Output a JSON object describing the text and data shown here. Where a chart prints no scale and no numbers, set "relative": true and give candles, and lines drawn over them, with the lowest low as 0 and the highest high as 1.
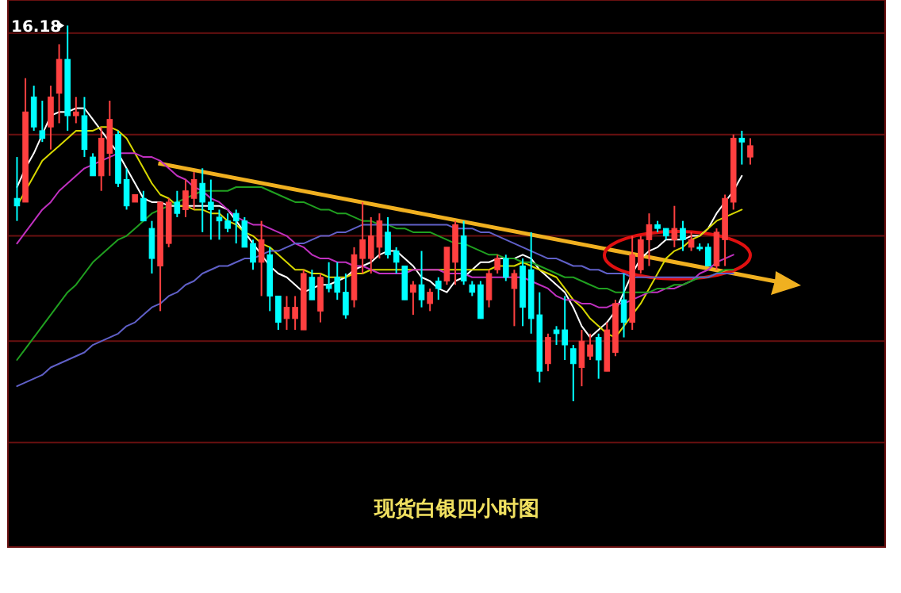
{
  "chart_data": {
    "type": "candlestick",
    "title": "现货白银四小时图",
    "relative": true,
    "ref_lines": [
      {
        "axis": "y",
        "value": 0.98,
        "color": "#6a1010"
      },
      {
        "axis": "y",
        "value": 0.71,
        "color": "#6a1010"
      },
      {
        "axis": "y",
        "value": 0.44,
        "color": "#6a1010"
      },
      {
        "axis": "y",
        "value": 0.16,
        "color": "#6a1010"
      },
      {
        "axis": "y",
        "value": -0.11,
        "color": "#6a1010"
      }
    ],
    "annotations": [
      "16.18"
    ],
    "categories": [
      null,
      null,
      null,
      null,
      null,
      null,
      null,
      null,
      null,
      null,
      null,
      null,
      null,
      null,
      null,
      null,
      null,
      null,
      null,
      null,
      null,
      null,
      null,
      null,
      null,
      null,
      null,
      null,
      null,
      null,
      null,
      null,
      null,
      null,
      null,
      null,
      null,
      null,
      null,
      null,
      null,
      null,
      null,
      null,
      null,
      null,
      null,
      null,
      null,
      null,
      null,
      null,
      null,
      null,
      null,
      null,
      null,
      null,
      null,
      null,
      null,
      null,
      null,
      null,
      null,
      null,
      null,
      null,
      null,
      null,
      null,
      null,
      null,
      null,
      null,
      null,
      null,
      null,
      null,
      null,
      null,
      null,
      null,
      null,
      null,
      null,
      null,
      null
    ],
    "ohlc": [
      [
        0.54,
        0.65,
        0.48,
        0.52
      ],
      [
        0.53,
        0.86,
        0.53,
        0.77
      ],
      [
        0.81,
        0.84,
        0.72,
        0.73
      ],
      [
        0.72,
        0.8,
        0.69,
        0.7
      ],
      [
        0.73,
        0.84,
        0.67,
        0.81
      ],
      [
        0.82,
        0.95,
        0.74,
        0.91
      ],
      [
        0.91,
        1,
        0.72,
        0.76
      ],
      [
        0.76,
        0.81,
        0.74,
        0.77
      ],
      [
        0.76,
        0.81,
        0.65,
        0.67
      ],
      [
        0.65,
        0.66,
        0.6,
        0.6
      ],
      [
        0.6,
        0.73,
        0.56,
        0.7
      ],
      [
        0.66,
        0.8,
        0.6,
        0.75
      ],
      [
        0.71,
        0.72,
        0.57,
        0.58
      ],
      [
        0.59,
        0.62,
        0.51,
        0.52
      ],
      [
        0.53,
        0.55,
        0.53,
        0.55
      ],
      [
        0.54,
        0.56,
        0.48,
        0.48
      ],
      [
        0.46,
        0.48,
        0.34,
        0.38
      ],
      [
        0.36,
        0.53,
        0.24,
        0.53
      ],
      [
        0.42,
        0.54,
        0.41,
        0.53
      ],
      [
        0.53,
        0.56,
        0.49,
        0.5
      ],
      [
        0.51,
        0.59,
        0.49,
        0.56
      ],
      [
        0.54,
        0.61,
        0.51,
        0.59
      ],
      [
        0.58,
        0.62,
        0.45,
        0.53
      ],
      [
        0.53,
        0.59,
        0.43,
        0.51
      ],
      [
        0.49,
        0.51,
        0.43,
        0.48
      ],
      [
        0.48,
        0.5,
        0.45,
        0.46
      ],
      [
        0.5,
        0.51,
        0.42,
        0.48
      ],
      [
        0.48,
        0.49,
        0.41,
        0.41
      ],
      [
        0.42,
        0.43,
        0.35,
        0.37
      ],
      [
        0.37,
        0.48,
        0.28,
        0.43
      ],
      [
        0.39,
        0.41,
        0.24,
        0.28
      ],
      [
        0.28,
        0.28,
        0.19,
        0.21
      ],
      [
        0.22,
        0.28,
        0.19,
        0.25
      ],
      [
        0.22,
        0.28,
        0.19,
        0.25
      ],
      [
        0.19,
        0.35,
        0.19,
        0.34
      ],
      [
        0.33,
        0.35,
        0.27,
        0.27
      ],
      [
        0.24,
        0.34,
        0.21,
        0.33
      ],
      [
        0.31,
        0.37,
        0.29,
        0.3
      ],
      [
        0.33,
        0.37,
        0.27,
        0.29
      ],
      [
        0.29,
        0.34,
        0.22,
        0.23
      ],
      [
        0.27,
        0.41,
        0.25,
        0.39
      ],
      [
        0.38,
        0.53,
        0.34,
        0.43
      ],
      [
        0.38,
        0.49,
        0.34,
        0.44
      ],
      [
        0.41,
        0.5,
        0.38,
        0.48
      ],
      [
        0.45,
        0.49,
        0.38,
        0.39
      ],
      [
        0.4,
        0.41,
        0.34,
        0.37
      ],
      [
        0.36,
        0.36,
        0.27,
        0.27
      ],
      [
        0.29,
        0.32,
        0.23,
        0.31
      ],
      [
        0.31,
        0.4,
        0.25,
        0.27
      ],
      [
        0.26,
        0.3,
        0.24,
        0.29
      ],
      [
        0.32,
        0.33,
        0.27,
        0.3
      ],
      [
        0.32,
        0.41,
        0.31,
        0.41
      ],
      [
        0.37,
        0.48,
        0.31,
        0.47
      ],
      [
        0.44,
        0.48,
        0.31,
        0.32
      ],
      [
        0.31,
        0.32,
        0.28,
        0.29
      ],
      [
        0.31,
        0.32,
        0.22,
        0.22
      ],
      [
        0.27,
        0.35,
        0.25,
        0.34
      ],
      [
        0.35,
        0.39,
        0.34,
        0.38
      ],
      [
        0.38,
        0.39,
        0.32,
        0.33
      ],
      [
        0.3,
        0.35,
        0.2,
        0.34
      ],
      [
        0.36,
        0.38,
        0.2,
        0.25
      ],
      [
        0.35,
        0.45,
        0.18,
        0.22
      ],
      [
        0.23,
        0.29,
        0.05,
        0.08
      ],
      [
        0.1,
        0.18,
        0.08,
        0.17
      ],
      [
        0.19,
        0.2,
        0.15,
        0.18
      ],
      [
        0.19,
        0.28,
        0.11,
        0.15
      ],
      [
        0.14,
        0.15,
        0,
        0.1
      ],
      [
        0.09,
        0.19,
        0.04,
        0.16
      ],
      [
        0.12,
        0.18,
        0.11,
        0.15
      ],
      [
        0.17,
        0.18,
        0.06,
        0.11
      ],
      [
        0.08,
        0.21,
        0.08,
        0.19
      ],
      [
        0.13,
        0.27,
        0.12,
        0.26
      ],
      [
        0.27,
        0.34,
        0.17,
        0.21
      ],
      [
        0.21,
        0.44,
        0.19,
        0.39
      ],
      [
        0.35,
        0.44,
        0.34,
        0.43
      ],
      [
        0.43,
        0.5,
        0.36,
        0.47
      ],
      [
        0.47,
        0.48,
        0.45,
        0.46
      ],
      [
        0.46,
        0.46,
        0.43,
        0.44
      ],
      [
        0.43,
        0.52,
        0.41,
        0.46
      ],
      [
        0.46,
        0.48,
        0.4,
        0.43
      ],
      [
        0.41,
        0.45,
        0.4,
        0.43
      ],
      [
        0.41,
        0.42,
        0.4,
        0.41
      ],
      [
        0.41,
        0.42,
        0.36,
        0.36
      ],
      [
        0.36,
        0.46,
        0.35,
        0.45
      ],
      [
        0.43,
        0.55,
        0.36,
        0.54
      ],
      [
        0.53,
        0.71,
        0.51,
        0.7
      ],
      [
        0.7,
        0.72,
        0.63,
        0.69
      ],
      [
        0.65,
        0.7,
        0.63,
        0.68
      ]
    ],
    "colors": [
      "#00ffff",
      "#ff4040",
      "#00ffff",
      "#00ffff",
      "#ff4040",
      "#ff4040",
      "#00ffff",
      "#ff4040",
      "#00ffff",
      "#00ffff",
      "#ff4040",
      "#ff4040",
      "#00ffff",
      "#00ffff",
      "#ff4040",
      "#00ffff",
      "#00ffff",
      "#ff4040",
      "#ff4040",
      "#00ffff",
      "#ff4040",
      "#ff4040",
      "#00ffff",
      "#00ffff",
      "#00ffff",
      "#00ffff",
      "#00ffff",
      "#00ffff",
      "#00ffff",
      "#ff4040",
      "#00ffff",
      "#00ffff",
      "#ff4040",
      "#ff4040",
      "#ff4040",
      "#00ffff",
      "#ff4040",
      "#00ffff",
      "#00ffff",
      "#00ffff",
      "#ff4040",
      "#ff4040",
      "#ff4040",
      "#ff4040",
      "#00ffff",
      "#00ffff",
      "#00ffff",
      "#ff4040",
      "#00ffff",
      "#ff4040",
      "#00ffff",
      "#ff4040",
      "#ff4040",
      "#00ffff",
      "#00ffff",
      "#00ffff",
      "#ff4040",
      "#ff4040",
      "#00ffff",
      "#ff4040",
      "#00ffff",
      "#00ffff",
      "#00ffff",
      "#ff4040",
      "#00ffff",
      "#00ffff",
      "#00ffff",
      "#ff4040",
      "#ff4040",
      "#00ffff",
      "#ff4040",
      "#ff4040",
      "#00ffff",
      "#ff4040",
      "#ff4040",
      "#ff4040",
      "#00ffff",
      "#00ffff",
      "#ff4040",
      "#00ffff",
      "#ff4040",
      "#00ffff",
      "#00ffff",
      "#ff4040",
      "#ff4040",
      "#ff4040",
      "#00ffff",
      "#ff4040"
    ],
    "series": [
      {
        "type": "line",
        "color": "#ffffff",
        "values": [
          0.57,
          0.62,
          0.66,
          0.71,
          0.76,
          0.77,
          0.77,
          0.78,
          0.78,
          0.75,
          0.72,
          0.69,
          0.66,
          0.62,
          0.58,
          0.54,
          0.53,
          0.53,
          0.52,
          0.52,
          0.52,
          0.52,
          0.52,
          0.52,
          0.52,
          0.51,
          0.48,
          0.45,
          0.42,
          0.39,
          0.36,
          0.34,
          0.33,
          0.31,
          0.29,
          0.3,
          0.31,
          0.31,
          0.32,
          0.33,
          0.35,
          0.36,
          0.37,
          0.39,
          0.4,
          0.4,
          0.38,
          0.36,
          0.33,
          0.32,
          0.3,
          0.29,
          0.32,
          0.33,
          0.35,
          0.37,
          0.37,
          0.38,
          0.38,
          0.38,
          0.39,
          0.38,
          0.35,
          0.33,
          0.31,
          0.29,
          0.25,
          0.2,
          0.17,
          0.19,
          0.21,
          0.24,
          0.29,
          0.34,
          0.38,
          0.4,
          0.41,
          0.43,
          0.43,
          0.43,
          0.44,
          0.44,
          0.46,
          0.5,
          0.53,
          0.56,
          0.6,
          null
        ]
      },
      {
        "type": "line",
        "color": "#d8d800",
        "values": [
          0.52,
          0.56,
          0.6,
          0.64,
          0.66,
          0.68,
          0.7,
          0.72,
          0.72,
          0.72,
          0.73,
          0.73,
          0.72,
          0.7,
          0.66,
          0.62,
          0.58,
          0.55,
          0.54,
          0.52,
          0.52,
          0.51,
          0.51,
          0.5,
          0.5,
          0.48,
          0.47,
          0.45,
          0.44,
          0.42,
          0.41,
          0.39,
          0.37,
          0.35,
          0.35,
          0.34,
          0.34,
          0.33,
          0.33,
          0.33,
          0.34,
          0.34,
          0.35,
          0.35,
          0.35,
          0.35,
          0.35,
          0.35,
          0.35,
          0.35,
          0.35,
          0.35,
          0.35,
          0.35,
          0.35,
          0.35,
          0.35,
          0.36,
          0.36,
          0.36,
          0.37,
          0.36,
          0.35,
          0.34,
          0.33,
          0.3,
          0.27,
          0.25,
          0.22,
          0.2,
          0.18,
          0.17,
          0.2,
          0.23,
          0.26,
          0.3,
          0.34,
          0.38,
          0.4,
          0.41,
          0.43,
          0.44,
          0.46,
          0.48,
          0.49,
          0.5,
          0.51,
          null
        ]
      },
      {
        "type": "line",
        "color": "#c030c0",
        "values": [
          0.42,
          0.45,
          0.48,
          0.51,
          0.53,
          0.56,
          0.58,
          0.6,
          0.62,
          0.63,
          0.64,
          0.65,
          0.66,
          0.66,
          0.66,
          0.65,
          0.65,
          0.64,
          0.62,
          0.6,
          0.59,
          0.57,
          0.56,
          0.54,
          0.53,
          0.51,
          0.49,
          0.48,
          0.47,
          0.47,
          0.46,
          0.45,
          0.44,
          0.42,
          0.41,
          0.39,
          0.38,
          0.38,
          0.37,
          0.37,
          0.36,
          0.36,
          0.35,
          0.34,
          0.34,
          0.34,
          0.34,
          0.35,
          0.35,
          0.35,
          0.35,
          0.34,
          0.34,
          0.34,
          0.33,
          0.33,
          0.33,
          0.33,
          0.33,
          0.33,
          0.33,
          0.32,
          0.31,
          0.3,
          0.28,
          0.27,
          0.27,
          0.26,
          0.26,
          0.25,
          0.25,
          0.26,
          0.26,
          0.27,
          0.28,
          0.29,
          0.29,
          0.3,
          0.3,
          0.31,
          0.32,
          0.34,
          0.35,
          0.37,
          0.38,
          0.39,
          null,
          null
        ]
      },
      {
        "type": "line",
        "color": "#20a020",
        "values": [
          0.11,
          0.14,
          0.17,
          0.2,
          0.23,
          0.26,
          0.29,
          0.31,
          0.34,
          0.37,
          0.39,
          0.41,
          0.43,
          0.44,
          0.46,
          0.48,
          0.5,
          0.51,
          0.52,
          0.53,
          0.54,
          0.55,
          0.56,
          0.56,
          0.56,
          0.56,
          0.57,
          0.57,
          0.57,
          0.57,
          0.56,
          0.55,
          0.54,
          0.53,
          0.53,
          0.52,
          0.51,
          0.51,
          0.5,
          0.5,
          0.49,
          0.48,
          0.48,
          0.47,
          0.47,
          0.46,
          0.46,
          0.45,
          0.45,
          0.45,
          0.44,
          0.43,
          0.42,
          0.42,
          0.41,
          0.4,
          0.39,
          0.39,
          0.38,
          0.38,
          0.37,
          0.37,
          0.36,
          0.35,
          0.34,
          0.33,
          0.33,
          0.32,
          0.31,
          0.3,
          0.3,
          0.29,
          0.29,
          0.29,
          0.29,
          0.29,
          0.3,
          0.3,
          0.31,
          0.31,
          0.32,
          0.33,
          0.33,
          0.34,
          0.35,
          0.35,
          null,
          null
        ]
      },
      {
        "type": "line",
        "color": "#6060c8",
        "values": [
          0.04,
          0.05,
          0.06,
          0.07,
          0.09,
          0.1,
          0.11,
          0.12,
          0.13,
          0.15,
          0.16,
          0.17,
          0.18,
          0.2,
          0.21,
          0.23,
          0.25,
          0.26,
          0.28,
          0.29,
          0.31,
          0.32,
          0.34,
          0.35,
          0.36,
          0.36,
          0.37,
          0.38,
          0.38,
          0.39,
          0.4,
          0.4,
          0.41,
          0.42,
          0.42,
          0.43,
          0.44,
          0.44,
          0.45,
          0.45,
          0.46,
          0.47,
          0.47,
          0.47,
          0.47,
          0.47,
          0.47,
          0.47,
          0.47,
          0.47,
          0.47,
          0.47,
          0.46,
          0.46,
          0.46,
          0.45,
          0.45,
          0.44,
          0.43,
          0.42,
          0.41,
          0.4,
          0.39,
          0.38,
          0.38,
          0.37,
          0.36,
          0.36,
          0.35,
          0.35,
          0.34,
          0.34,
          0.34,
          0.33,
          0.33,
          0.33,
          0.33,
          0.33,
          0.33,
          0.33,
          0.33,
          0.33,
          0.33,
          0.34,
          0.34,
          0.34,
          null,
          null
        ]
      }
    ]
  }
}
